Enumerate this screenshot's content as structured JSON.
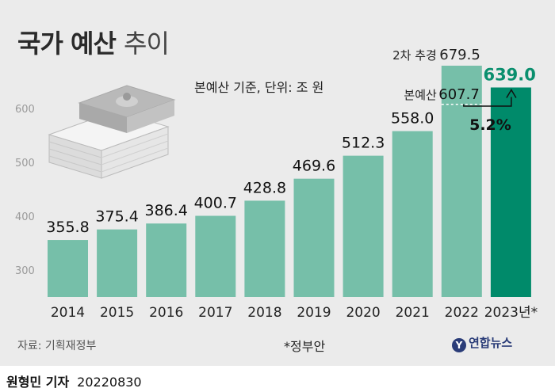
{
  "title_bold": "국가 예산",
  "title_light": "추이",
  "subtitle": "본예산 기준, 단위: 조 원",
  "source": "자료: 기획재정부",
  "note": "*정부안",
  "logo": "연합뉴스",
  "reporter": "원형민 기자",
  "date": "20220830",
  "colors": {
    "bar": "#76bfa9",
    "highlight": "#008a6a",
    "highlight_text": "#0a8f6e"
  },
  "chart_data": {
    "type": "bar",
    "categories": [
      "2014",
      "2015",
      "2016",
      "2017",
      "2018",
      "2019",
      "2020",
      "2021",
      "2022",
      "2023년*"
    ],
    "values": [
      355.8,
      375.4,
      386.4,
      400.7,
      428.8,
      469.6,
      512.3,
      558.0,
      679.5,
      639.0
    ],
    "value_labels": [
      "355.8",
      "375.4",
      "386.4",
      "400.7",
      "428.8",
      "469.6",
      "512.3",
      "558.0",
      "679.5",
      "639.0"
    ],
    "yticks": [
      300,
      400,
      500,
      600
    ],
    "ylim": [
      250,
      700
    ],
    "annotations": {
      "supplementary_label": "2차 추경",
      "main_budget_label": "본예산",
      "main_budget_2022": 607.7,
      "main_budget_2022_label": "607.7",
      "growth": "5.2%"
    }
  }
}
